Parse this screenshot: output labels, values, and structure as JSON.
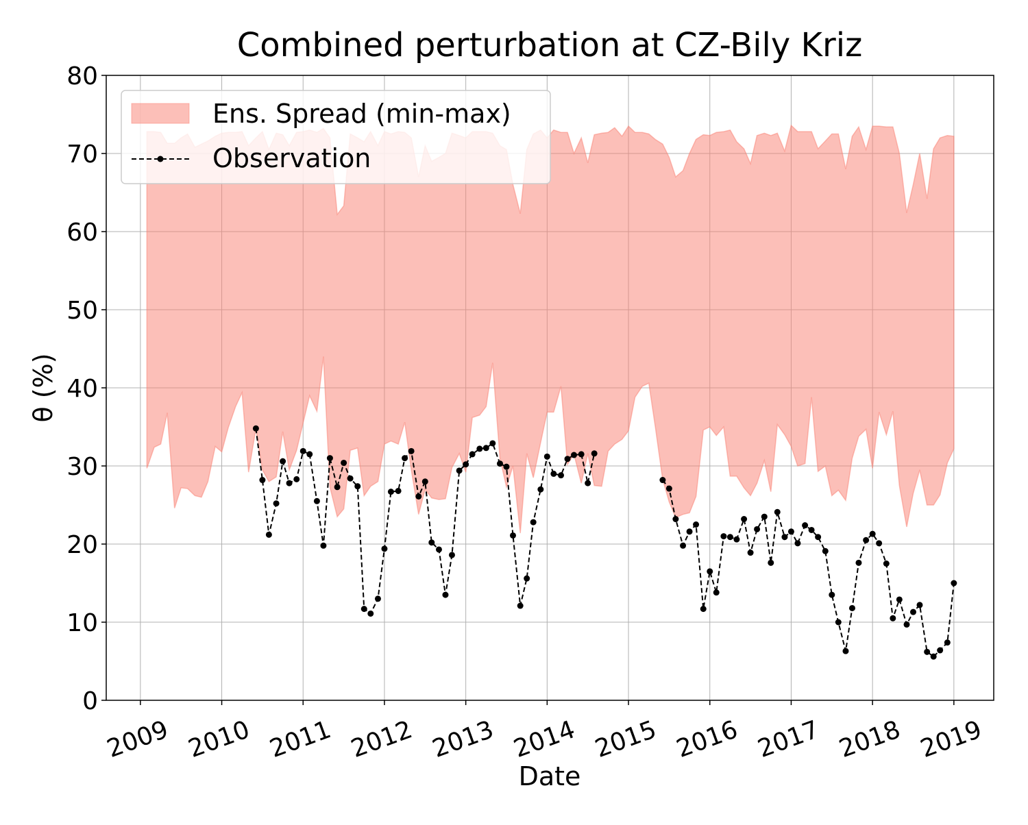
{
  "chart_data": {
    "type": "line",
    "title": "Combined perturbation at CZ-Bily Kriz",
    "x_label": "Date",
    "y_label": "θ (%)",
    "xlim": [
      2008.58,
      2019.49
    ],
    "xticks": [
      2009,
      2010,
      2011,
      2012,
      2013,
      2014,
      2015,
      2016,
      2017,
      2018,
      2019
    ],
    "ylim": [
      0,
      80
    ],
    "yticks": [
      0,
      10,
      20,
      30,
      40,
      50,
      60,
      70,
      80
    ],
    "grid": true,
    "legend": "upper left",
    "x": [
      2009.08,
      2009.17,
      2009.25,
      2009.33,
      2009.42,
      2009.5,
      2009.58,
      2009.67,
      2009.75,
      2009.83,
      2009.92,
      2010,
      2010.08,
      2010.17,
      2010.25,
      2010.33,
      2010.42,
      2010.5,
      2010.58,
      2010.67,
      2010.75,
      2010.83,
      2010.92,
      2011,
      2011.08,
      2011.17,
      2011.25,
      2011.33,
      2011.42,
      2011.5,
      2011.58,
      2011.67,
      2011.75,
      2011.83,
      2011.92,
      2012,
      2012.08,
      2012.17,
      2012.25,
      2012.33,
      2012.42,
      2012.5,
      2012.58,
      2012.67,
      2012.75,
      2012.83,
      2012.92,
      2013,
      2013.08,
      2013.17,
      2013.25,
      2013.33,
      2013.42,
      2013.5,
      2013.58,
      2013.67,
      2013.75,
      2013.83,
      2013.92,
      2014,
      2014.08,
      2014.17,
      2014.25,
      2014.33,
      2014.42,
      2014.5,
      2014.58,
      2014.67,
      2014.75,
      2014.83,
      2014.92,
      2015,
      2015.08,
      2015.17,
      2015.25,
      2015.33,
      2015.42,
      2015.5,
      2015.58,
      2015.67,
      2015.75,
      2015.83,
      2015.92,
      2016,
      2016.08,
      2016.17,
      2016.25,
      2016.33,
      2016.42,
      2016.5,
      2016.58,
      2016.67,
      2016.75,
      2016.83,
      2016.92,
      2017,
      2017.08,
      2017.17,
      2017.25,
      2017.33,
      2017.42,
      2017.5,
      2017.58,
      2017.67,
      2017.75,
      2017.83,
      2017.92,
      2018,
      2018.08,
      2018.17,
      2018.25,
      2018.33,
      2018.42,
      2018.5,
      2018.58,
      2018.67,
      2018.75,
      2018.83,
      2018.92,
      2019
    ],
    "series": [
      {
        "name": "Ens. Spread (min-max)",
        "kind": "band",
        "color": "#fa8072",
        "alpha": 0.5,
        "upper": [
          72.8,
          72.8,
          72.7,
          71.3,
          71.3,
          72.0,
          72.5,
          70.8,
          71.2,
          71.6,
          72.2,
          72.6,
          72.7,
          72.7,
          72.8,
          71.0,
          72.0,
          72.8,
          70.5,
          72.6,
          72.4,
          71.0,
          72.7,
          72.8,
          73.0,
          72.7,
          73.2,
          72.0,
          62.2,
          63.3,
          72.5,
          72.0,
          71.5,
          72.8,
          71.0,
          72.8,
          72.5,
          72.8,
          72.7,
          72.0,
          67.0,
          71.0,
          69.0,
          69.5,
          70.0,
          72.6,
          72.3,
          72.0,
          72.8,
          72.8,
          72.8,
          72.6,
          71.0,
          70.5,
          66.0,
          62.3,
          70.5,
          72.5,
          73.0,
          72.0,
          73.0,
          72.7,
          72.7,
          70.0,
          72.0,
          68.8,
          72.4,
          72.6,
          72.7,
          73.3,
          72.2,
          73.5,
          72.7,
          72.7,
          72.5,
          71.8,
          71.2,
          69.5,
          67.0,
          67.8,
          70.0,
          71.8,
          72.4,
          72.3,
          72.7,
          72.8,
          73.0,
          71.5,
          70.6,
          68.7,
          72.3,
          72.6,
          72.3,
          72.6,
          70.3,
          73.6,
          72.8,
          72.8,
          72.8,
          70.6,
          71.6,
          72.5,
          72.5,
          68.0,
          72.2,
          73.4,
          70.5,
          73.5,
          73.5,
          73.4,
          73.4,
          70.0,
          62.4,
          66.0,
          70.0,
          64.2,
          70.6,
          72.0,
          72.3,
          72.2
        ],
        "lower": [
          29.7,
          32.4,
          32.8,
          36.8,
          24.6,
          27.2,
          27.1,
          26.2,
          26.0,
          28.0,
          32.5,
          31.8,
          34.9,
          37.6,
          39.4,
          29.2,
          34.8,
          29.5,
          28.0,
          28.6,
          34.4,
          29.5,
          32.0,
          35.5,
          39.0,
          37.0,
          44.0,
          27.3,
          23.5,
          24.5,
          32.0,
          32.3,
          26.2,
          27.4,
          28.0,
          32.8,
          33.2,
          32.8,
          35.6,
          29.5,
          23.8,
          27.0,
          25.9,
          25.7,
          25.8,
          29.8,
          31.6,
          29.2,
          36.2,
          36.5,
          37.6,
          43.2,
          31.0,
          27.3,
          30.0,
          21.4,
          31.6,
          28.5,
          33.0,
          36.9,
          36.9,
          40.2,
          30.2,
          31.5,
          27.8,
          31.6,
          27.5,
          27.4,
          31.9,
          32.8,
          33.4,
          34.5,
          38.8,
          40.2,
          40.6,
          35.0,
          28.3,
          25.4,
          23.4,
          23.8,
          24.0,
          26.1,
          34.6,
          35.0,
          33.9,
          35.0,
          28.7,
          28.7,
          27.2,
          26.2,
          27.8,
          30.7,
          26.7,
          35.3,
          34.0,
          32.5,
          30.0,
          30.3,
          38.8,
          29.3,
          30.0,
          26.2,
          26.9,
          25.6,
          31.0,
          33.8,
          34.7,
          29.7,
          36.9,
          34.0,
          37.0,
          27.5,
          22.2,
          26.5,
          29.5,
          25.0,
          25.0,
          26.3,
          30.4,
          32.2
        ]
      },
      {
        "name": "Observation",
        "kind": "line",
        "color": "#000000",
        "dashed": true,
        "marker": true,
        "values": [
          null,
          null,
          null,
          null,
          null,
          null,
          null,
          null,
          null,
          null,
          null,
          null,
          null,
          null,
          null,
          null,
          34.8,
          28.2,
          21.2,
          25.2,
          30.6,
          27.8,
          28.3,
          31.9,
          31.5,
          25.5,
          19.8,
          31.0,
          27.3,
          30.4,
          28.4,
          27.4,
          11.7,
          11.1,
          13.0,
          19.4,
          26.7,
          26.8,
          31.0,
          31.9,
          26.1,
          28.0,
          20.2,
          19.3,
          13.5,
          18.6,
          29.4,
          30.2,
          31.5,
          32.2,
          32.3,
          32.9,
          30.3,
          29.9,
          21.1,
          12.1,
          15.6,
          22.8,
          27.0,
          31.2,
          29.0,
          28.8,
          30.9,
          31.4,
          31.5,
          27.8,
          31.6,
          null,
          null,
          null,
          null,
          null,
          null,
          null,
          null,
          null,
          28.2,
          27.1,
          23.2,
          19.8,
          21.6,
          22.5,
          11.7,
          16.5,
          13.8,
          21.0,
          20.9,
          20.6,
          23.2,
          18.9,
          21.9,
          23.5,
          17.6,
          24.1,
          20.9,
          21.6,
          20.1,
          22.4,
          21.8,
          20.9,
          19.1,
          13.5,
          10.0,
          6.3,
          11.8,
          17.6,
          20.5,
          21.3,
          20.1,
          17.5,
          10.5,
          12.9,
          9.7,
          11.3,
          12.2,
          6.2,
          5.6,
          6.4,
          7.4,
          15.0
        ]
      }
    ]
  }
}
